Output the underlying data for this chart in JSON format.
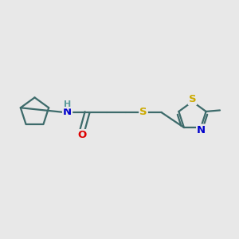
{
  "bg_color": "#e8e8e8",
  "bond_color": "#3d6b6b",
  "o_color": "#dd0000",
  "n_color": "#0000cc",
  "s_color": "#ccaa00",
  "h_color": "#5a9a9a",
  "line_width": 1.6,
  "font_size_atom": 9.5,
  "font_size_h": 8.0,
  "fig_width": 3.0,
  "fig_height": 3.0,
  "xlim": [
    0,
    10
  ],
  "ylim": [
    0,
    10
  ]
}
